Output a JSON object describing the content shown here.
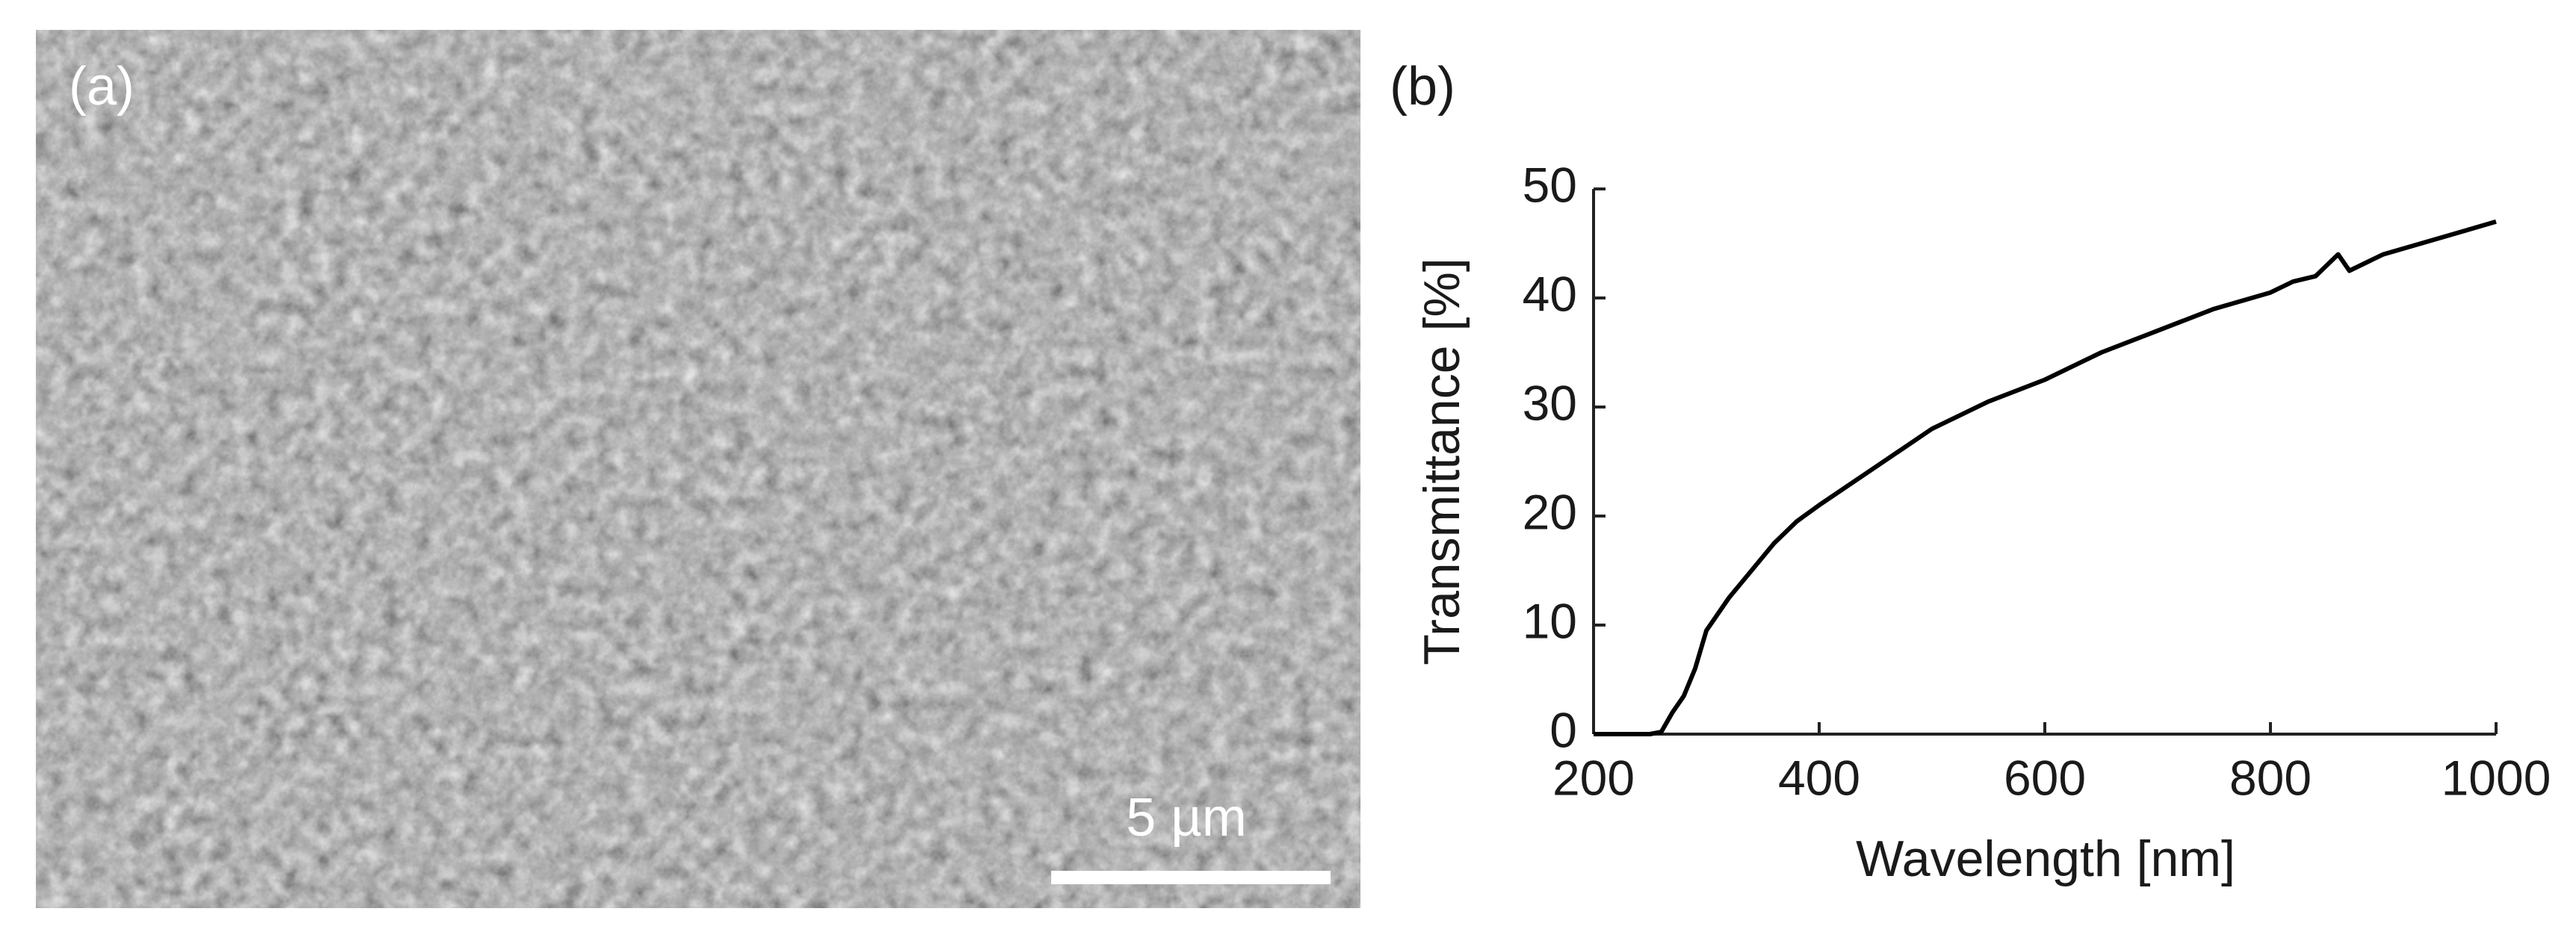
{
  "sem_panel": {
    "label": "(a)",
    "scale_bar_label": "5 µm"
  },
  "chart_data": {
    "type": "line",
    "panel_label": "(b)",
    "x_label": "Wavelength [nm]",
    "y_label": "Transmittance [%]",
    "x": [
      200,
      250,
      260,
      270,
      280,
      290,
      300,
      310,
      320,
      340,
      360,
      380,
      400,
      450,
      500,
      550,
      600,
      650,
      700,
      750,
      800,
      820,
      840,
      860,
      870,
      900,
      950,
      1000
    ],
    "series": [
      {
        "name": "Transmittance",
        "color": "#000000",
        "values": [
          0,
          0,
          0.2,
          2,
          3.5,
          6,
          9.5,
          11,
          12.5,
          15,
          17.5,
          19.5,
          21,
          24.5,
          28,
          30.5,
          32.5,
          35,
          37,
          39,
          40.5,
          41.5,
          42,
          44,
          42.5,
          44,
          45.5,
          47
        ]
      }
    ],
    "xlim": [
      200,
      1000
    ],
    "ylim": [
      0,
      50
    ],
    "xticks": [
      200,
      400,
      600,
      800,
      1000
    ],
    "yticks": [
      0,
      10,
      20,
      30,
      40,
      50
    ]
  }
}
